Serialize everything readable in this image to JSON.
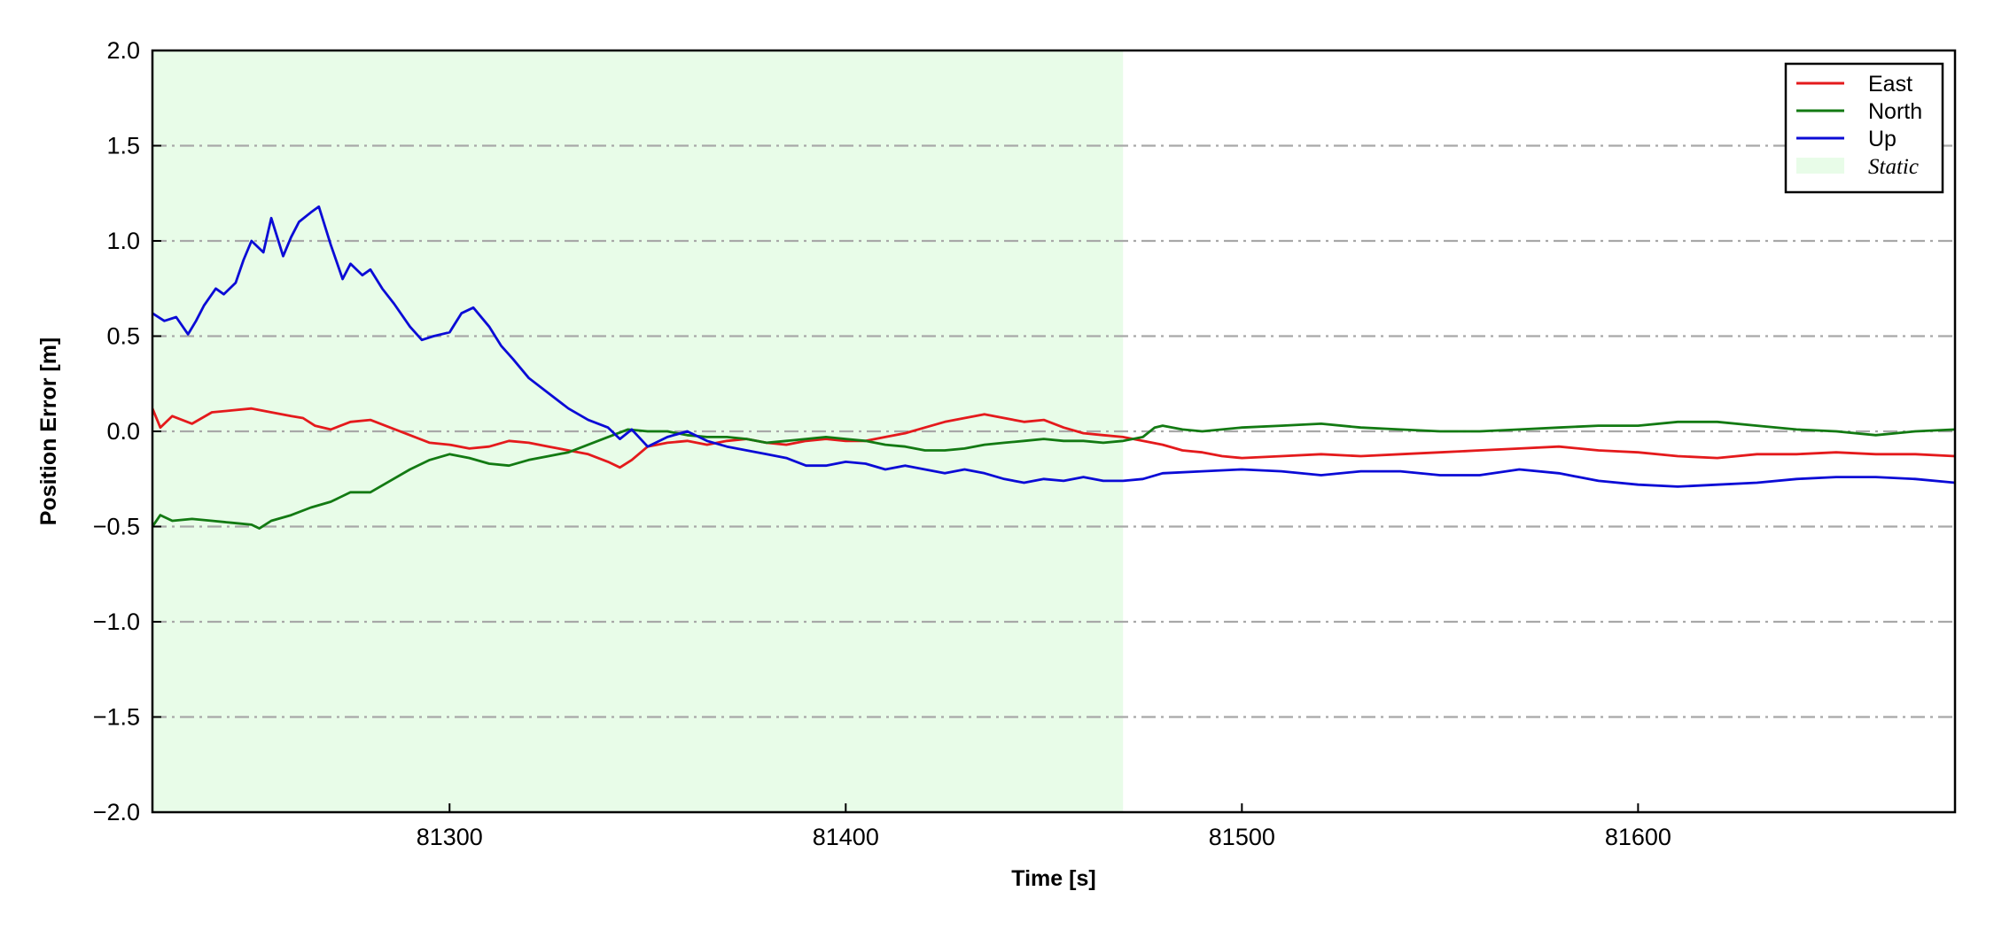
{
  "chart_data": {
    "type": "line",
    "xlabel": "Time [s]",
    "ylabel": "Position Error [m]",
    "xlim": [
      81225,
      81680
    ],
    "ylim": [
      -2.0,
      2.0
    ],
    "x_ticks": [
      81300,
      81400,
      81500,
      81600
    ],
    "x_tick_labels": [
      "81300",
      "81400",
      "81500",
      "81600"
    ],
    "y_ticks": [
      -2.0,
      -1.5,
      -1.0,
      -0.5,
      0.0,
      0.5,
      1.0,
      1.5,
      2.0
    ],
    "y_tick_labels": [
      "−2.0",
      "−1.5",
      "−1.0",
      "−0.5",
      "0.0",
      "0.5",
      "1.0",
      "1.5",
      "2.0"
    ],
    "grid": "horizontal dash-dot",
    "legend_position": "top-right",
    "static_region": {
      "label": "Static",
      "x_start": 81225,
      "x_end": 81470,
      "color": "#e8fce8"
    },
    "series": [
      {
        "name": "East",
        "color": "#e41a1c",
        "x": [
          81225,
          81227,
          81230,
          81235,
          81240,
          81245,
          81250,
          81255,
          81260,
          81263,
          81266,
          81270,
          81275,
          81280,
          81285,
          81290,
          81295,
          81300,
          81305,
          81310,
          81315,
          81320,
          81325,
          81330,
          81335,
          81340,
          81343,
          81346,
          81350,
          81355,
          81360,
          81365,
          81370,
          81375,
          81380,
          81385,
          81390,
          81395,
          81400,
          81405,
          81410,
          81415,
          81420,
          81425,
          81430,
          81435,
          81440,
          81445,
          81450,
          81455,
          81460,
          81465,
          81470,
          81475,
          81480,
          81485,
          81490,
          81495,
          81500,
          81510,
          81520,
          81530,
          81540,
          81550,
          81560,
          81570,
          81580,
          81590,
          81600,
          81610,
          81620,
          81630,
          81640,
          81650,
          81660,
          81670,
          81680
        ],
        "y": [
          0.12,
          0.02,
          0.08,
          0.04,
          0.1,
          0.11,
          0.12,
          0.1,
          0.08,
          0.07,
          0.03,
          0.01,
          0.05,
          0.06,
          0.02,
          -0.02,
          -0.06,
          -0.07,
          -0.09,
          -0.08,
          -0.05,
          -0.06,
          -0.08,
          -0.1,
          -0.12,
          -0.16,
          -0.19,
          -0.15,
          -0.08,
          -0.06,
          -0.05,
          -0.07,
          -0.05,
          -0.04,
          -0.06,
          -0.07,
          -0.05,
          -0.04,
          -0.05,
          -0.05,
          -0.03,
          -0.01,
          0.02,
          0.05,
          0.07,
          0.09,
          0.07,
          0.05,
          0.06,
          0.02,
          -0.01,
          -0.02,
          -0.03,
          -0.05,
          -0.07,
          -0.1,
          -0.11,
          -0.13,
          -0.14,
          -0.13,
          -0.12,
          -0.13,
          -0.12,
          -0.11,
          -0.1,
          -0.09,
          -0.08,
          -0.1,
          -0.11,
          -0.13,
          -0.14,
          -0.12,
          -0.12,
          -0.11,
          -0.12,
          -0.12,
          -0.13
        ]
      },
      {
        "name": "North",
        "color": "#137a13",
        "x": [
          81225,
          81227,
          81230,
          81235,
          81240,
          81245,
          81250,
          81252,
          81255,
          81260,
          81265,
          81270,
          81275,
          81280,
          81285,
          81290,
          81295,
          81300,
          81305,
          81310,
          81315,
          81320,
          81325,
          81330,
          81335,
          81340,
          81345,
          81350,
          81355,
          81360,
          81365,
          81370,
          81375,
          81380,
          81385,
          81390,
          81395,
          81400,
          81405,
          81410,
          81415,
          81420,
          81425,
          81430,
          81435,
          81440,
          81445,
          81450,
          81455,
          81460,
          81465,
          81470,
          81475,
          81478,
          81480,
          81485,
          81490,
          81500,
          81510,
          81520,
          81530,
          81540,
          81550,
          81560,
          81570,
          81580,
          81590,
          81600,
          81610,
          81620,
          81630,
          81640,
          81650,
          81660,
          81670,
          81680
        ],
        "y": [
          -0.5,
          -0.44,
          -0.47,
          -0.46,
          -0.47,
          -0.48,
          -0.49,
          -0.51,
          -0.47,
          -0.44,
          -0.4,
          -0.37,
          -0.32,
          -0.32,
          -0.26,
          -0.2,
          -0.15,
          -0.12,
          -0.14,
          -0.17,
          -0.18,
          -0.15,
          -0.13,
          -0.11,
          -0.07,
          -0.03,
          0.01,
          0.0,
          0.0,
          -0.02,
          -0.03,
          -0.03,
          -0.04,
          -0.06,
          -0.05,
          -0.04,
          -0.03,
          -0.04,
          -0.05,
          -0.07,
          -0.08,
          -0.1,
          -0.1,
          -0.09,
          -0.07,
          -0.06,
          -0.05,
          -0.04,
          -0.05,
          -0.05,
          -0.06,
          -0.05,
          -0.03,
          0.02,
          0.03,
          0.01,
          0.0,
          0.02,
          0.03,
          0.04,
          0.02,
          0.01,
          0.0,
          0.0,
          0.01,
          0.02,
          0.03,
          0.03,
          0.05,
          0.05,
          0.03,
          0.01,
          0.0,
          -0.02,
          0.0,
          0.01
        ]
      },
      {
        "name": "Up",
        "color": "#0b0bd6",
        "x": [
          81225,
          81228,
          81231,
          81234,
          81236,
          81238,
          81241,
          81243,
          81246,
          81248,
          81250,
          81253,
          81255,
          81258,
          81260,
          81262,
          81265,
          81267,
          81270,
          81273,
          81275,
          81278,
          81280,
          81283,
          81286,
          81290,
          81293,
          81296,
          81300,
          81303,
          81306,
          81310,
          81313,
          81316,
          81320,
          81325,
          81330,
          81335,
          81340,
          81343,
          81346,
          81350,
          81355,
          81360,
          81365,
          81370,
          81375,
          81380,
          81385,
          81390,
          81395,
          81400,
          81405,
          81410,
          81415,
          81420,
          81425,
          81430,
          81435,
          81440,
          81445,
          81450,
          81455,
          81460,
          81465,
          81470,
          81475,
          81480,
          81490,
          81500,
          81510,
          81520,
          81530,
          81540,
          81550,
          81560,
          81570,
          81580,
          81590,
          81600,
          81610,
          81620,
          81630,
          81640,
          81650,
          81660,
          81670,
          81680
        ],
        "y": [
          0.62,
          0.58,
          0.6,
          0.51,
          0.58,
          0.66,
          0.75,
          0.72,
          0.78,
          0.9,
          1.0,
          0.94,
          1.12,
          0.92,
          1.02,
          1.1,
          1.15,
          1.18,
          0.98,
          0.8,
          0.88,
          0.82,
          0.85,
          0.75,
          0.67,
          0.55,
          0.48,
          0.5,
          0.52,
          0.62,
          0.65,
          0.55,
          0.45,
          0.38,
          0.28,
          0.2,
          0.12,
          0.06,
          0.02,
          -0.04,
          0.01,
          -0.08,
          -0.03,
          0.0,
          -0.05,
          -0.08,
          -0.1,
          -0.12,
          -0.14,
          -0.18,
          -0.18,
          -0.16,
          -0.17,
          -0.2,
          -0.18,
          -0.2,
          -0.22,
          -0.2,
          -0.22,
          -0.25,
          -0.27,
          -0.25,
          -0.26,
          -0.24,
          -0.26,
          -0.26,
          -0.25,
          -0.22,
          -0.21,
          -0.2,
          -0.21,
          -0.23,
          -0.21,
          -0.21,
          -0.23,
          -0.23,
          -0.2,
          -0.22,
          -0.26,
          -0.28,
          -0.29,
          -0.28,
          -0.27,
          -0.25,
          -0.24,
          -0.24,
          -0.25,
          -0.27
        ]
      }
    ]
  }
}
